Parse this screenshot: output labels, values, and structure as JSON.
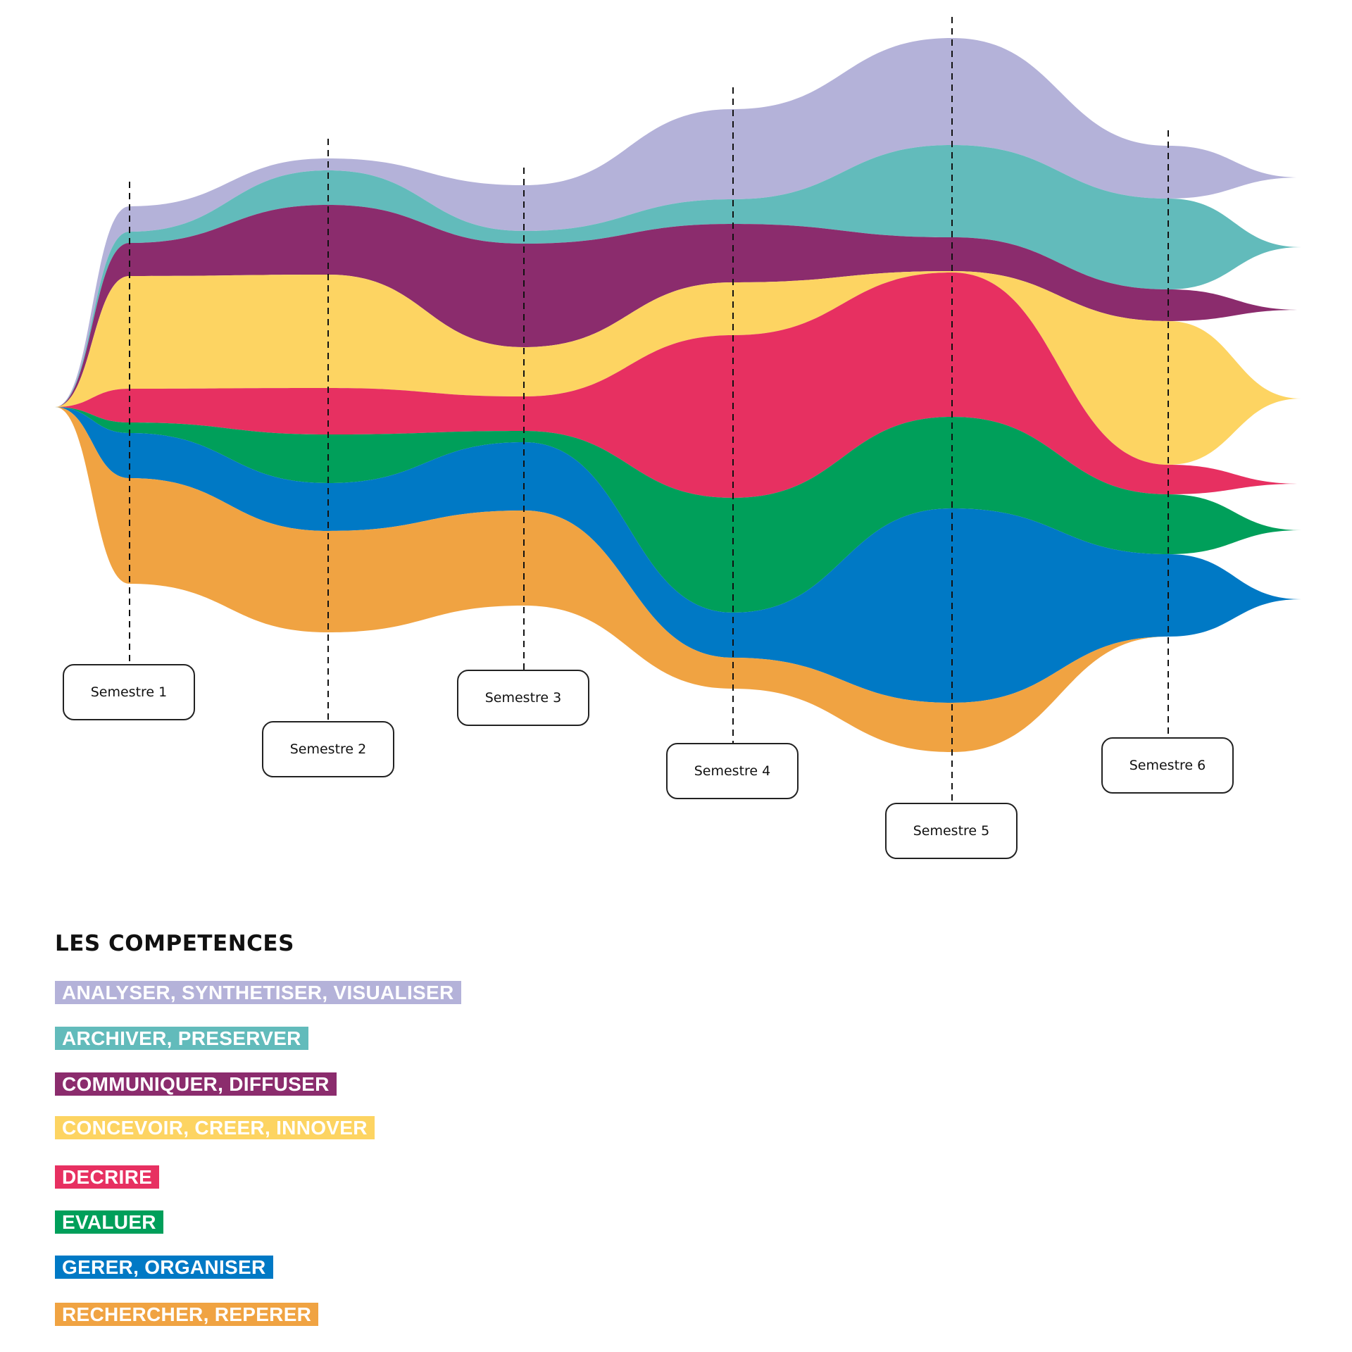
{
  "chart_data": {
    "type": "area",
    "subtype": "streamgraph",
    "title": "",
    "xlabel": "",
    "ylabel": "",
    "grid": false,
    "legend_placement": "bottom-left",
    "categories": [
      "Semestre 1",
      "Semestre 2",
      "Semestre 3",
      "Semestre 4",
      "Semestre 5",
      "Semestre 6"
    ],
    "stack_offset": [
      -28.5,
      -35.3,
      -31.5,
      -42.3,
      -52.4,
      -37.1
    ],
    "series": [
      {
        "name": "ANALYSER, SYNTHETISER, VISUALISER",
        "color": "#B4B2D9",
        "values": [
          3.6,
          1.7,
          6.5,
          12.8,
          15.2,
          7.5
        ],
        "end_offset": -32.6
      },
      {
        "name": "ARCHIVER, PRESERVER",
        "color": "#62BBBB",
        "values": [
          1.6,
          4.9,
          1.8,
          3.5,
          13.1,
          12.9
        ],
        "end_offset": -22.7
      },
      {
        "name": "COMMUNIQUER, DIFFUSER",
        "color": "#8B2C6D",
        "values": [
          4.7,
          9.9,
          14.7,
          8.3,
          4.8,
          4.5
        ],
        "end_offset": -13.8
      },
      {
        "name": "CONCEVOIR, CREER, INNOVER",
        "color": "#FDD462",
        "values": [
          16.0,
          16.1,
          7.0,
          7.5,
          0.2,
          20.4
        ],
        "end_offset": -1.2
      },
      {
        "name": "DECRIRE",
        "color": "#E73061",
        "values": [
          4.8,
          6.6,
          4.9,
          23.1,
          20.5,
          4.2
        ],
        "end_offset": 10.9
      },
      {
        "name": "EVALUER",
        "color": "#009F5A",
        "values": [
          1.5,
          6.9,
          1.6,
          16.3,
          13.0,
          8.5
        ],
        "end_offset": 17.5
      },
      {
        "name": "GERER, ORGANISER",
        "color": "#0079C5",
        "values": [
          6.4,
          6.8,
          9.7,
          6.4,
          27.6,
          11.7
        ],
        "end_offset": 27.3
      },
      {
        "name": "RECHERCHER, REPERER",
        "color": "#F0A342",
        "values": [
          15.0,
          14.4,
          13.5,
          4.4,
          7.0,
          0.0
        ],
        "end_offset": null
      }
    ]
  },
  "legend": {
    "title": "LES COMPETENCES",
    "items": [
      {
        "label": "ANALYSER, SYNTHETISER, VISUALISER",
        "color": "#B4B2D9"
      },
      {
        "label": "ARCHIVER, PRESERVER",
        "color": "#62BBBB"
      },
      {
        "label": "COMMUNIQUER, DIFFUSER",
        "color": "#8B2C6D"
      },
      {
        "label": "CONCEVOIR, CREER, INNOVER",
        "color": "#FDD462"
      },
      {
        "label": "DECRIRE",
        "color": "#E73061"
      },
      {
        "label": "EVALUER",
        "color": "#009F5A"
      },
      {
        "label": "GERER, ORGANISER",
        "color": "#0079C5"
      },
      {
        "label": "RECHERCHER, REPERER",
        "color": "#F0A342"
      }
    ]
  },
  "semesters": [
    "Semestre 1",
    "Semestre 2",
    "Semestre 3",
    "Semestre 4",
    "Semestre 5",
    "Semestre 6"
  ]
}
